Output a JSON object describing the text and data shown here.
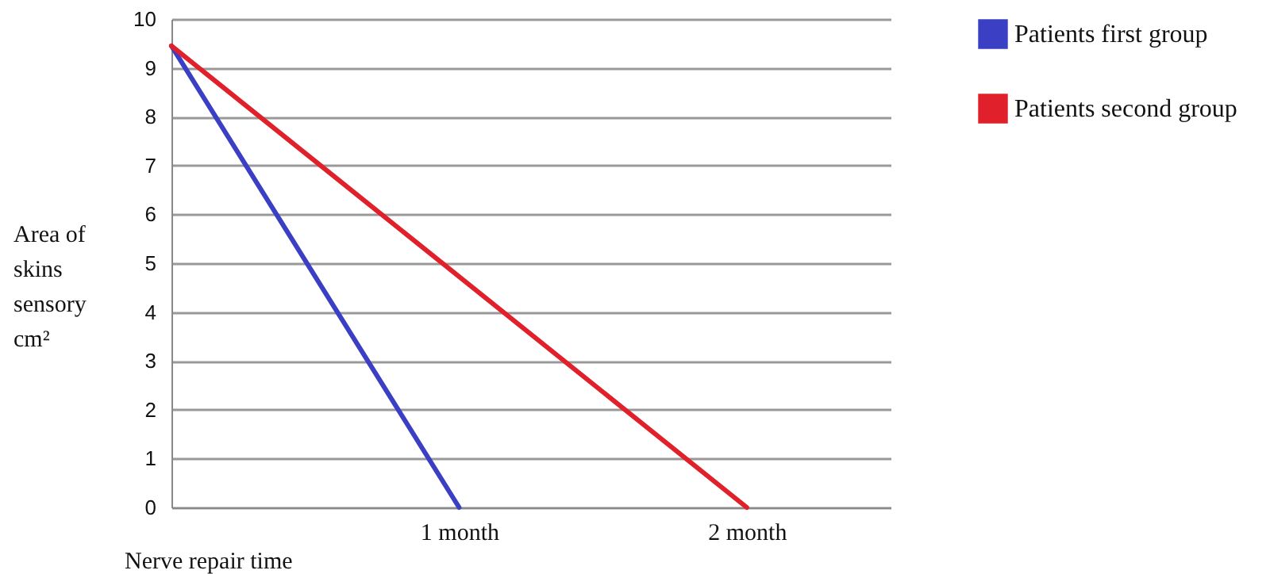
{
  "chart_data": {
    "type": "line",
    "xlabel": "Nerve repair time",
    "ylabel": "Area of skins sensory cm²",
    "x": [
      0,
      1,
      2
    ],
    "series": [
      {
        "name": "Patients first group",
        "color": "#3b3fc4",
        "values": [
          9.45,
          0,
          null
        ]
      },
      {
        "name": "Patients second group",
        "color": "#e0202a",
        "values": [
          9.45,
          null,
          0
        ]
      }
    ],
    "xlim": [
      0,
      2.5
    ],
    "xticks": [
      {
        "value": 1,
        "label": "1 month"
      },
      {
        "value": 2,
        "label": "2 month"
      }
    ],
    "ylim": [
      0,
      10
    ],
    "yticks": [
      0,
      1,
      2,
      3,
      4,
      5,
      6,
      7,
      8,
      9,
      10
    ],
    "grid": "y",
    "legend": "right",
    "marker": "none",
    "line_style": "solid"
  }
}
